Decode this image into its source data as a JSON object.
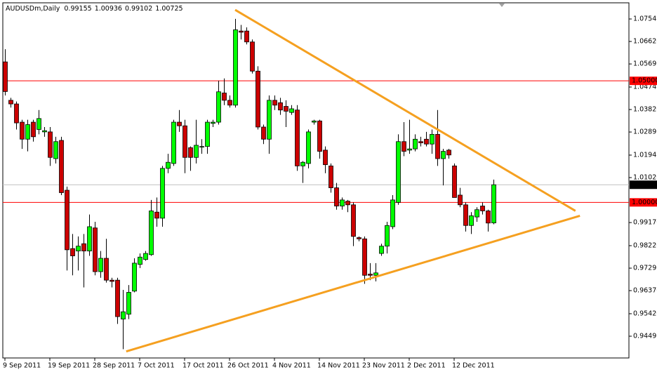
{
  "chart_data": {
    "type": "candlestick",
    "title": "AUDUSDm,Daily",
    "categories": [
      "9 Sep 2011",
      null,
      null,
      null,
      null,
      null,
      null,
      null,
      "19 Sep 2011",
      null,
      null,
      null,
      null,
      null,
      null,
      null,
      "28 Sep 2011",
      null,
      null,
      null,
      null,
      null,
      null,
      null,
      "7 Oct 2011",
      null,
      null,
      null,
      null,
      null,
      null,
      null,
      "17 Oct 2011",
      null,
      null,
      null,
      null,
      null,
      null,
      null,
      "26 Oct 2011",
      null,
      null,
      null,
      null,
      null,
      null,
      null,
      "4 Nov 2011",
      null,
      null,
      null,
      null,
      null,
      null,
      null,
      "14 Nov 2011",
      null,
      null,
      null,
      null,
      null,
      null,
      null,
      "23 Nov 2011",
      null,
      null,
      null,
      null,
      null,
      null,
      null,
      "2 Dec 2011",
      null,
      null,
      null,
      null,
      null,
      null,
      null,
      "12 Dec 2011",
      null,
      null,
      null,
      null,
      null,
      null,
      null
    ],
    "open": [
      1.0578,
      1.042,
      1.0405,
      1.033,
      1.026,
      1.033,
      1.03,
      1.029,
      1.029,
      1.018,
      1.0255,
      1.005,
      0.981,
      0.98,
      0.983,
      0.98,
      0.9895,
      0.9715,
      0.977,
      0.968,
      0.968,
      0.952,
      0.954,
      0.9635,
      0.9745,
      0.9765,
      0.9785,
      0.996,
      0.9935,
      1.014,
      1.016,
      1.033,
      1.0315,
      1.0225,
      1.0185,
      1.023,
      1.023,
      1.0325,
      1.033,
      1.045,
      1.042,
      1.04,
      1.0705,
      1.0705,
      1.066,
      1.054,
      1.031,
      1.026,
      1.042,
      1.041,
      1.0395,
      1.037,
      1.038,
      1.015,
      1.016,
      1.033,
      1.0335,
      1.0215,
      1.015,
      1.006,
      0.9985,
      1.0005,
      0.999,
      0.9855,
      0.985,
      0.9705,
      0.97,
      0.979,
      0.982,
      0.99,
      1.0,
      1.025,
      1.0215,
      1.022,
      1.025,
      1.026,
      1.024,
      1.028,
      1.018,
      1.0215,
      1.015,
      1.003,
      0.999,
      0.9905,
      0.994,
      0.9985,
      0.9965,
      0.99155
    ],
    "high": [
      1.063,
      1.043,
      1.0415,
      1.034,
      1.034,
      1.034,
      1.038,
      1.031,
      1.031,
      1.027,
      1.027,
      1.0065,
      0.987,
      0.986,
      0.987,
      0.995,
      0.992,
      0.98,
      0.985,
      0.969,
      0.969,
      0.964,
      0.966,
      0.977,
      0.979,
      0.98,
      1.001,
      1.002,
      1.015,
      1.02,
      1.034,
      1.038,
      1.034,
      1.023,
      1.034,
      1.026,
      1.034,
      1.034,
      1.05,
      1.051,
      1.044,
      1.0755,
      1.073,
      1.072,
      1.067,
      1.056,
      1.032,
      1.044,
      1.044,
      1.043,
      1.042,
      1.04,
      1.04,
      1.017,
      1.03,
      1.034,
      1.034,
      1.023,
      1.016,
      1.008,
      1.002,
      1.001,
      1.0,
      0.986,
      0.986,
      0.975,
      0.975,
      0.983,
      0.992,
      1.003,
      1.028,
      1.033,
      1.034,
      1.028,
      1.027,
      1.029,
      1.03,
      1.038,
      1.022,
      1.022,
      1.016,
      1.006,
      1.0,
      0.996,
      0.998,
      1.0,
      0.997,
      1.00936
    ],
    "low": [
      1.044,
      1.039,
      1.03,
      1.022,
      1.021,
      1.025,
      1.028,
      1.027,
      1.015,
      1.016,
      1.003,
      0.972,
      0.97,
      0.972,
      0.965,
      0.978,
      0.97,
      0.969,
      0.967,
      0.965,
      0.95,
      0.9396,
      0.952,
      0.963,
      0.973,
      0.976,
      0.978,
      0.99,
      0.99,
      1.012,
      1.015,
      1.029,
      1.012,
      1.013,
      1.016,
      1.02,
      1.02,
      1.031,
      1.032,
      1.04,
      1.039,
      1.039,
      1.067,
      1.065,
      1.053,
      1.03,
      1.024,
      1.02,
      1.038,
      1.036,
      1.031,
      1.036,
      1.013,
      1.008,
      1.014,
      1.032,
      1.018,
      1.012,
      1.004,
      0.997,
      0.997,
      0.996,
      0.982,
      0.984,
      0.9665,
      0.968,
      0.9675,
      0.978,
      0.979,
      0.989,
      0.999,
      1.019,
      1.02,
      1.021,
      1.023,
      1.023,
      1.02,
      1.015,
      1.007,
      1.018,
      1.002,
      0.998,
      0.988,
      0.987,
      0.992,
      0.995,
      0.988,
      0.99102
    ],
    "close": [
      1.0456,
      1.0405,
      1.0327,
      1.026,
      1.032,
      1.027,
      1.0345,
      1.0295,
      1.0185,
      1.025,
      1.004,
      0.9805,
      0.978,
      0.982,
      0.98,
      0.99,
      0.9715,
      0.977,
      0.968,
      0.9675,
      0.953,
      0.955,
      0.963,
      0.975,
      0.9775,
      0.979,
      0.9965,
      0.9935,
      1.014,
      1.0165,
      1.033,
      1.0315,
      1.0185,
      1.0185,
      1.0235,
      1.023,
      1.033,
      1.033,
      1.0455,
      1.042,
      1.04,
      1.071,
      1.07,
      1.066,
      1.054,
      1.031,
      1.026,
      1.042,
      1.04,
      1.038,
      1.0375,
      1.0385,
      1.015,
      1.0165,
      1.029,
      1.0335,
      1.021,
      1.0155,
      1.006,
      0.9985,
      1.001,
      0.999,
      0.986,
      0.985,
      0.97,
      0.97,
      0.971,
      0.982,
      0.9905,
      1.001,
      1.025,
      1.021,
      1.022,
      1.026,
      1.0245,
      1.024,
      1.028,
      1.018,
      1.021,
      1.0195,
      1.002,
      0.999,
      0.9905,
      0.9945,
      0.997,
      0.9965,
      0.9915,
      1.00725
    ],
    "up_color": "#00ff00",
    "down_color": "#cc0000",
    "ylim": [
      0.936,
      1.0821
    ],
    "yticks": [
      1.07545,
      {
        "value": 1.0662,
        "label": "1.06620"
      },
      1.05695,
      1.04745,
      {
        "value": 1.0382,
        "label": "1.03820"
      },
      1.02895,
      1.01945,
      {
        "value": 1.0102,
        "label": "1.01020"
      },
      {
        "value": 0.9917,
        "label": "0.99170"
      },
      {
        "value": 0.9822,
        "label": "0.98220"
      },
      0.97295,
      {
        "value": 0.9637,
        "label": "0.96370"
      },
      {
        "value": 0.9542,
        "label": "0.95420"
      },
      0.94495
    ],
    "levels": [
      {
        "value": 1.05,
        "label": "1.05000",
        "color": "#ff0000"
      },
      {
        "value": 1.0,
        "label": "1.00000",
        "color": "#ff0000"
      }
    ],
    "current_color": "#c0c0c0",
    "trendlines": [
      {
        "x": [
          41,
          101.6
        ],
        "y": [
          1.0792,
          0.9965
        ]
      },
      {
        "x": [
          21.6,
          102.4
        ],
        "y": [
          0.9387,
          0.9945
        ]
      }
    ],
    "trendline_color": "#f5a020"
  }
}
